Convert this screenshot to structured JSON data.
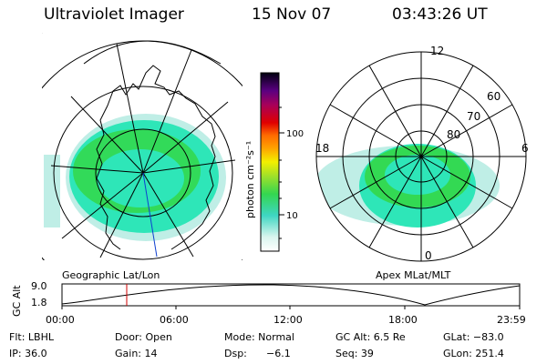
{
  "header": {
    "instrument": "Ultraviolet Imager",
    "date": "15 Nov 07",
    "time": "03:43:26 UT"
  },
  "geo_panel": {
    "label": "Geographic Lat/Lon"
  },
  "colorbar": {
    "unit_label": "photon cm⁻²s⁻¹",
    "ticks": [
      "100",
      "10"
    ]
  },
  "polar_panel": {
    "label": "Apex MLat/MLT",
    "mlt_labels": {
      "top": "12",
      "left": "18",
      "right": "6",
      "bottom": "0"
    },
    "lat_labels": [
      "60",
      "70",
      "80"
    ]
  },
  "altitude_plot": {
    "ylabel": "GC Alt",
    "yticks": [
      "9.0",
      "1.8"
    ],
    "xticks": [
      "00:00",
      "06:00",
      "12:00",
      "18:00",
      "23:59"
    ],
    "current_time_marker": "03:43"
  },
  "info": {
    "row1": {
      "flt": "Flt: LBHL",
      "door": "Door: Open",
      "mode": "Mode: Normal",
      "gc_alt": "GC Alt: 6.5 Re",
      "glat": "GLat: −83.0"
    },
    "row2": {
      "ip": "IP: 36.0",
      "gain": "Gain: 14",
      "dsp_label": "Dsp:",
      "dsp_value": "−6.1",
      "seq": "Seq: 39",
      "glon": "GLon: 251.4"
    }
  },
  "colors": {
    "aurora_main": "#2ee6b8",
    "aurora_bright": "#34d63a",
    "aurora_faint": "#bfeee6",
    "marker": "#d00000"
  }
}
